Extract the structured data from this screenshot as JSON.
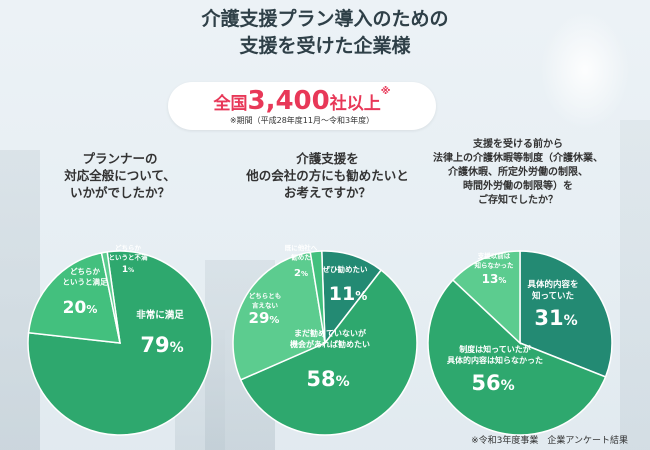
{
  "title": {
    "line1": "介護支援プラン導入のための",
    "line2": "支援を受けた企業様"
  },
  "headline": {
    "prefix": "全国",
    "number": "3,400",
    "suffix": "社以上",
    "mark": "※",
    "period": "※期間（平成28年度11月～令和3年度）"
  },
  "colors": {
    "dark": "#238a73",
    "medium": "#2ea86e",
    "light": "#43c07e",
    "lighter": "#5ccc8f",
    "accent": "#e83858"
  },
  "questions": [
    {
      "lines": [
        "プランナーの",
        "対応全般について、",
        "いかがでしたか？"
      ]
    },
    {
      "lines": [
        "介護支援を",
        "他の会社の方にも勧めたいと",
        "お考えですか？"
      ]
    },
    {
      "lines": [
        "支援を受ける前から",
        "法律上の介護休暇等制度（介護休業、",
        "介護休暇、所定外労働の制限、",
        "時間外労働の制限等）を",
        "ご存知でしたか？"
      ]
    }
  ],
  "chart_data": [
    {
      "type": "pie",
      "title": "プランナーの対応全般について、いかがでしたか？",
      "slices": [
        {
          "label": "非常に満足",
          "value": 79
        },
        {
          "label": "どちらかというと満足",
          "value": 20
        },
        {
          "label": "どちらかというと不満",
          "value": 1
        }
      ]
    },
    {
      "type": "pie",
      "title": "介護支援を他の会社の方にも勧めたいとお考えですか？",
      "slices": [
        {
          "label": "ぜひ勧めたい",
          "value": 11
        },
        {
          "label": "まだ勧めていないが機会があれば勧めたい",
          "value": 58
        },
        {
          "label": "どちらとも言えない",
          "value": 29
        },
        {
          "label": "既に他社へ勧めた",
          "value": 2
        }
      ]
    },
    {
      "type": "pie",
      "title": "支援を受ける前から法律上の介護休暇等制度を存知でしたか？",
      "slices": [
        {
          "label": "具体的内容を知っていた",
          "value": 31
        },
        {
          "label": "制度は知っていたが具体的内容は知らなかった",
          "value": 56
        },
        {
          "label": "支援以前は知らなかった",
          "value": 13
        }
      ]
    }
  ],
  "footnote": "※令和3年度事業　企業アンケート結果"
}
